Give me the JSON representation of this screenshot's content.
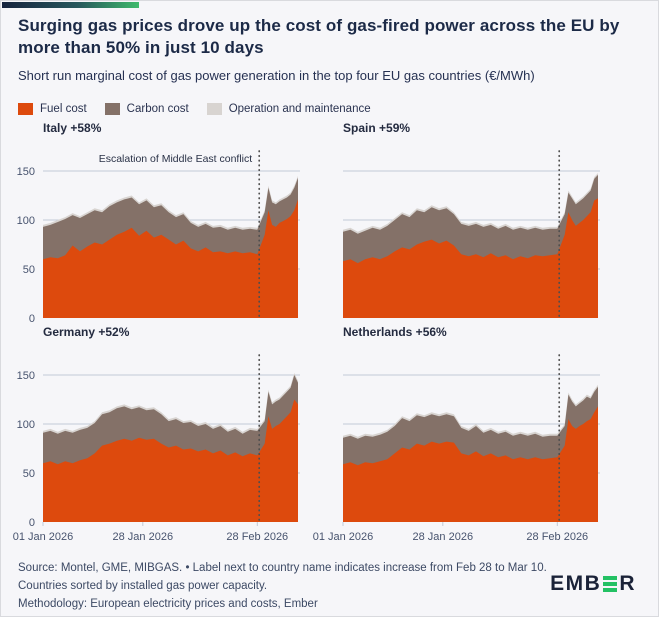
{
  "header": {
    "title": "Surging gas prices drove up the cost of gas-fired power across the EU by more than 50% in just 10 days",
    "subtitle": "Short run marginal cost of gas power generation in the top four EU gas countries (€/MWh)"
  },
  "legend": [
    {
      "label": "Fuel cost",
      "color": "#DD4A0D"
    },
    {
      "label": "Carbon cost",
      "color": "#847168"
    },
    {
      "label": "Operation and maintenance",
      "color": "#D8D4D1"
    }
  ],
  "colors": {
    "fuel": "#DD4A0D",
    "carbon": "#847168",
    "om": "#D8D4D1",
    "gridline": "#C2CAD6",
    "axis_text": "#47536E",
    "annotation_text": "#2A3247",
    "event_line": "#4E4E4E",
    "title_navy": "#1C2A47",
    "accent_green": "#3FBA6C",
    "logo_green": "#24C164"
  },
  "footer": {
    "line1": "Source: Montel, GME, MIBGAS. • Label next to country name indicates increase from Feb 28 to Mar 10.",
    "line2": "Countries sorted by installed gas power capacity.",
    "line3": "Methodology: European electricity prices and costs, Ember",
    "logo_prefix": "EMB",
    "logo_suffix": "R"
  },
  "chart_data": {
    "type": "area",
    "stacked": true,
    "unit": "€/MWh",
    "title": "Short run marginal cost of gas power generation in the top four EU gas countries (€/MWh)",
    "annotation": "Escalation of Middle East conflict",
    "legend_entries": [
      "Fuel cost",
      "Carbon cost",
      "Operation and maintenance"
    ],
    "x_range_days": [
      0,
      69
    ],
    "x_days": [
      0,
      2,
      4,
      6,
      8,
      10,
      12,
      14,
      16,
      18,
      20,
      22,
      24,
      26,
      28,
      30,
      32,
      34,
      36,
      38,
      40,
      42,
      44,
      46,
      48,
      50,
      52,
      54,
      56,
      58,
      60,
      61,
      62,
      63,
      64,
      65,
      66,
      67,
      68,
      69
    ],
    "x_ticks": [
      {
        "day": 0,
        "label": "01 Jan 2026"
      },
      {
        "day": 27,
        "label": "28 Jan 2026"
      },
      {
        "day": 58,
        "label": "28 Feb 2026"
      }
    ],
    "y_ticks": [
      0,
      50,
      100,
      150
    ],
    "ylim": [
      0,
      170
    ],
    "grid": true,
    "event_line_day": 58.5,
    "series_order": [
      "fuel",
      "carbon",
      "om"
    ],
    "panels": [
      {
        "name": "Italy",
        "label": "Italy +58%",
        "increase_pct": 58,
        "annotated": true,
        "fuel": [
          60,
          62,
          61,
          64,
          74,
          68,
          73,
          77,
          75,
          80,
          85,
          88,
          92,
          84,
          89,
          82,
          85,
          80,
          75,
          79,
          71,
          68,
          72,
          67,
          68,
          66,
          68,
          66,
          67,
          65,
          85,
          110,
          95,
          93,
          97,
          99,
          101,
          104,
          110,
          121
        ],
        "carbon": [
          33,
          33,
          37,
          37,
          31,
          34,
          33,
          33,
          33,
          34,
          33,
          33,
          31,
          32,
          31,
          31,
          30,
          28,
          28,
          27,
          26,
          25,
          24,
          25,
          25,
          24,
          24,
          24,
          24,
          25,
          23,
          23,
          23,
          23,
          22,
          22,
          22,
          22,
          23,
          22
        ],
        "om_const": 2
      },
      {
        "name": "Spain",
        "label": "Spain +59%",
        "increase_pct": 59,
        "annotated": false,
        "fuel": [
          58,
          60,
          56,
          60,
          62,
          60,
          63,
          68,
          72,
          70,
          75,
          78,
          80,
          76,
          79,
          74,
          65,
          63,
          65,
          62,
          66,
          62,
          64,
          60,
          63,
          61,
          64,
          63,
          64,
          65,
          85,
          108,
          100,
          94,
          97,
          100,
          104,
          108,
          120,
          122
        ],
        "carbon": [
          30,
          30,
          30,
          29,
          30,
          30,
          31,
          32,
          34,
          33,
          35,
          30,
          33,
          34,
          33,
          32,
          31,
          31,
          31,
          31,
          29,
          29,
          30,
          30,
          29,
          29,
          28,
          27,
          27,
          26,
          21,
          20,
          22,
          22,
          22,
          22,
          22,
          22,
          22,
          24
        ],
        "om_const": 2
      },
      {
        "name": "Germany",
        "label": "Germany +52%",
        "increase_pct": 52,
        "annotated": false,
        "fuel": [
          60,
          62,
          59,
          62,
          60,
          63,
          65,
          70,
          78,
          80,
          83,
          85,
          83,
          86,
          84,
          85,
          80,
          76,
          78,
          74,
          75,
          72,
          74,
          70,
          73,
          68,
          71,
          67,
          70,
          68,
          80,
          108,
          95,
          98,
          100,
          104,
          108,
          112,
          125,
          120
        ],
        "carbon": [
          31,
          31,
          31,
          31,
          31,
          31,
          31,
          31,
          32,
          32,
          33,
          33,
          32,
          31,
          30,
          30,
          30,
          27,
          27,
          27,
          27,
          26,
          26,
          25,
          25,
          24,
          24,
          23,
          24,
          25,
          23,
          25,
          25,
          25,
          25,
          25,
          25,
          25,
          25,
          22
        ],
        "om_const": 2
      },
      {
        "name": "Netherlands",
        "label": "Netherlands +56%",
        "increase_pct": 56,
        "annotated": false,
        "fuel": [
          59,
          61,
          58,
          61,
          60,
          62,
          64,
          70,
          76,
          74,
          80,
          78,
          82,
          80,
          82,
          81,
          70,
          68,
          72,
          67,
          70,
          66,
          68,
          64,
          66,
          64,
          66,
          64,
          65,
          66,
          78,
          105,
          98,
          95,
          98,
          100,
          103,
          105,
          112,
          118
        ],
        "carbon": [
          27,
          27,
          27,
          27,
          27,
          27,
          28,
          28,
          30,
          29,
          29,
          29,
          28,
          28,
          28,
          27,
          26,
          25,
          26,
          24,
          24,
          24,
          24,
          24,
          24,
          24,
          24,
          23,
          23,
          22,
          20,
          25,
          25,
          23,
          23,
          24,
          25,
          21,
          21,
          20
        ],
        "om_const": 2
      }
    ]
  }
}
